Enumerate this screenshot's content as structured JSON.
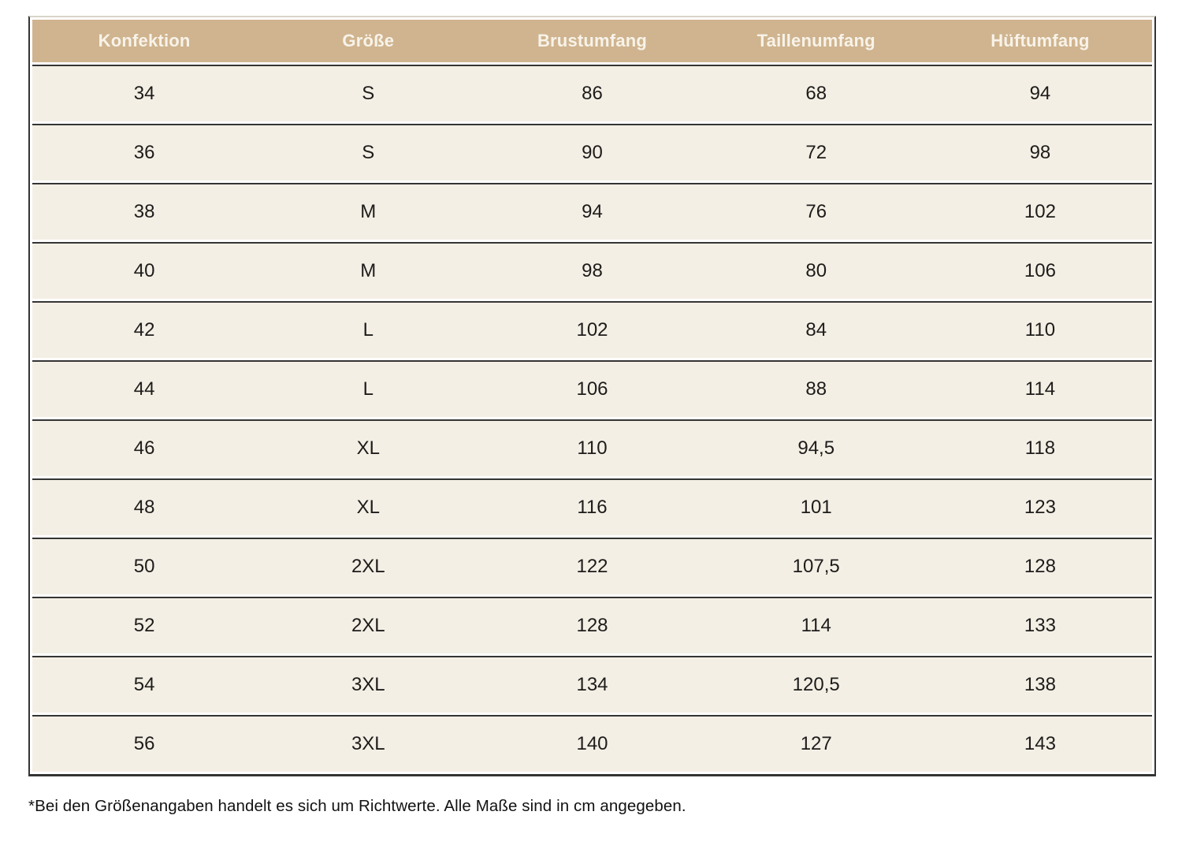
{
  "table": {
    "columns": [
      "Konfektion",
      "Größe",
      "Brustumfang",
      "Taillenumfang",
      "Hüftumfang"
    ],
    "rows": [
      [
        "34",
        "S",
        "86",
        "68",
        "94"
      ],
      [
        "36",
        "S",
        "90",
        "72",
        "98"
      ],
      [
        "38",
        "M",
        "94",
        "76",
        "102"
      ],
      [
        "40",
        "M",
        "98",
        "80",
        "106"
      ],
      [
        "42",
        "L",
        "102",
        "84",
        "110"
      ],
      [
        "44",
        "L",
        "106",
        "88",
        "114"
      ],
      [
        "46",
        "XL",
        "110",
        "94,5",
        "118"
      ],
      [
        "48",
        "XL",
        "116",
        "101",
        "123"
      ],
      [
        "50",
        "2XL",
        "122",
        "107,5",
        "128"
      ],
      [
        "52",
        "2XL",
        "128",
        "114",
        "133"
      ],
      [
        "54",
        "3XL",
        "134",
        "120,5",
        "138"
      ],
      [
        "56",
        "3XL",
        "140",
        "127",
        "143"
      ]
    ]
  },
  "footnote": "*Bei den Größenangaben handelt es sich um Richtwerte. Alle Maße sind in cm angegeben.",
  "colors": {
    "header_bg": "#CFB48F",
    "header_text": "#F8F3E9",
    "row_bg": "#F4EFE5",
    "border": "#343434",
    "body_text": "#1d1c1a"
  }
}
